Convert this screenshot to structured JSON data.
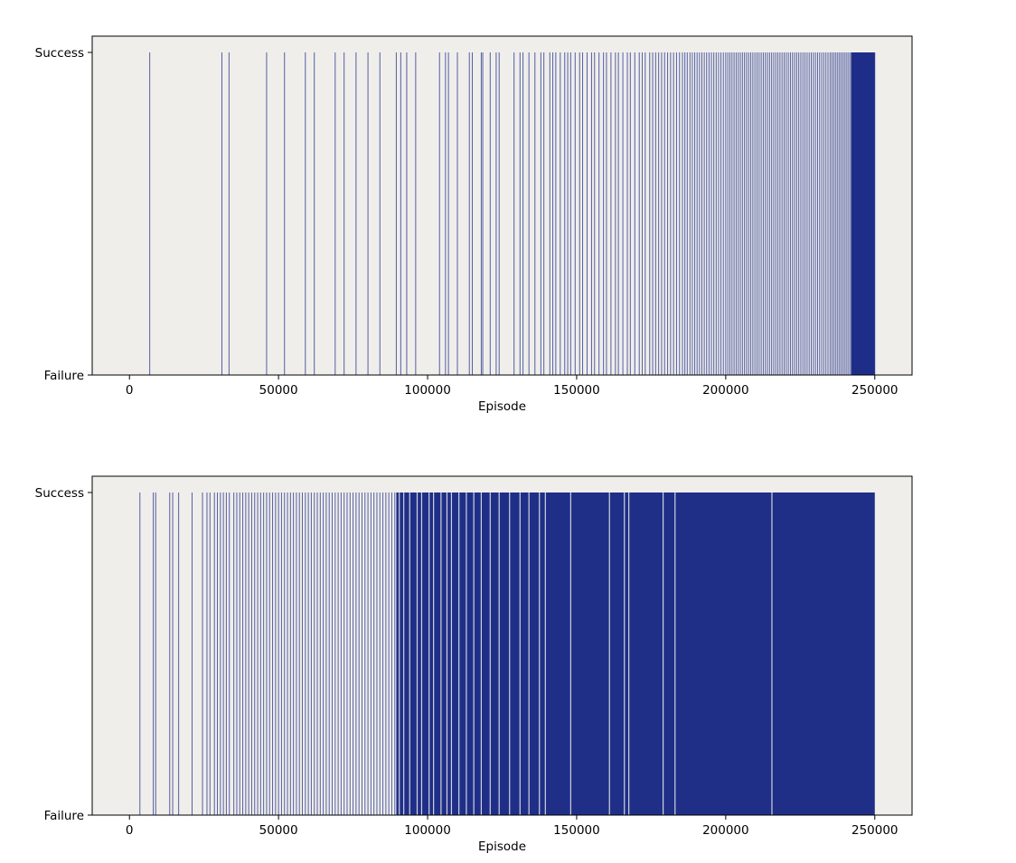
{
  "chart_data": [
    {
      "type": "barcode",
      "panel": "top",
      "xlabel": "Episode",
      "ylabel": "",
      "xlim": [
        -12500,
        262500
      ],
      "xticks": [
        0,
        50000,
        100000,
        150000,
        200000,
        250000
      ],
      "xtick_labels": [
        "0",
        "50000",
        "100000",
        "150000",
        "200000",
        "250000"
      ],
      "yticks": [
        "Failure",
        "Success"
      ],
      "episodes_total": 250000,
      "background_color": "#f0eeeb",
      "success_color": "#1f2f88",
      "success_episodes": [
        6800,
        31000,
        33400,
        46000,
        52000,
        59000,
        62000,
        69000,
        72000,
        76000,
        80000,
        84000,
        89500,
        91000,
        93000,
        96000,
        104000,
        106000,
        107000,
        110000,
        114000,
        115000,
        118000,
        118500,
        121000,
        123000,
        124000,
        129000,
        131000,
        132000,
        134000,
        136000,
        138000,
        139000,
        141000,
        142000,
        143000,
        144500,
        146000,
        147000,
        148000,
        149500,
        151000,
        152000,
        153500,
        155000,
        156000,
        157500,
        159000,
        160000,
        161500,
        163000,
        164000,
        165500,
        167000,
        168000,
        169500,
        171000,
        172000,
        173000,
        174500,
        175500,
        176500,
        177500,
        178500,
        179500,
        180500,
        181500,
        182500,
        183500,
        184500,
        185500,
        186300,
        187100,
        188000,
        188800,
        189600,
        190400,
        191200,
        192000,
        192800,
        193600,
        194400,
        195200,
        196000,
        196800,
        197600,
        198400,
        199200,
        200000,
        200700,
        201400,
        202100,
        202800,
        203500,
        204200,
        204900,
        205600,
        206300,
        207000,
        207700,
        208400,
        209100,
        209800,
        210500,
        211200,
        211900,
        212600,
        213300,
        214000,
        214700,
        215400,
        216100,
        216800,
        217500,
        218200,
        218900,
        219600,
        220300,
        221000,
        221700,
        222400,
        223100,
        223800,
        224500,
        225200,
        225900,
        226600,
        227300,
        228000,
        228700,
        229400,
        230100,
        230800,
        231500,
        232200,
        232900,
        233600,
        234300,
        235000,
        235600,
        236200,
        236800,
        237400,
        238000,
        238600,
        239200,
        239800,
        240400,
        241000,
        241600,
        242200,
        242800,
        243400,
        244000,
        244600,
        245200,
        245800,
        246400,
        247000,
        247600,
        248200,
        248800,
        249400,
        250000
      ],
      "dense_ranges": [
        [
          242000,
          250000
        ]
      ]
    },
    {
      "type": "barcode",
      "panel": "bottom",
      "xlabel": "Episode",
      "ylabel": "",
      "xlim": [
        -12500,
        262500
      ],
      "xticks": [
        0,
        50000,
        100000,
        150000,
        200000,
        250000
      ],
      "xtick_labels": [
        "0",
        "50000",
        "100000",
        "150000",
        "200000",
        "250000"
      ],
      "yticks": [
        "Failure",
        "Success"
      ],
      "episodes_total": 250000,
      "background_color": "#f0eeeb",
      "success_color": "#1f2f88",
      "success_episodes": [
        3500,
        8000,
        8800,
        13500,
        14500,
        16500,
        21000,
        24500,
        26000,
        27000,
        28500,
        29500,
        30500,
        31500,
        32500,
        33500,
        35000,
        36000,
        37000,
        38000,
        39000,
        40000,
        41000,
        42000,
        43000,
        44000,
        45000,
        46000,
        47000,
        48000,
        49000,
        50000,
        51000,
        52000,
        53000,
        54000,
        55000,
        56000,
        57000,
        58000,
        59000,
        60000,
        61000,
        62000,
        63000,
        64000,
        65000,
        66000,
        67000,
        68000,
        69000,
        70000,
        71000,
        72000,
        73000,
        74000,
        75000,
        76000,
        77000,
        78000,
        79000,
        80000,
        81000,
        82000,
        83000,
        84000,
        85000,
        86000,
        87000,
        88000,
        89000
      ],
      "dense_ranges": [
        [
          89500,
          250000
        ]
      ],
      "gaps": [
        90500,
        92000,
        94000,
        96500,
        98000,
        100500,
        102000,
        104500,
        106500,
        108000,
        110500,
        113000,
        115500,
        118000,
        121000,
        124000,
        127500,
        131000,
        134000,
        137500,
        139500,
        148000,
        161000,
        166000,
        167500,
        179000,
        183000,
        215500
      ]
    }
  ]
}
